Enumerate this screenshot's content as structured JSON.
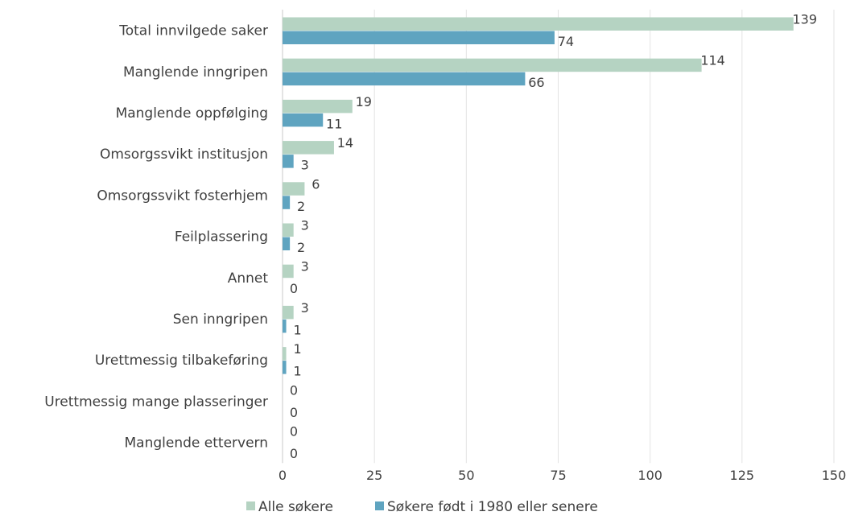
{
  "chart_data": {
    "type": "bar",
    "orientation": "horizontal",
    "categories": [
      "Total innvilgede saker",
      "Manglende inngripen",
      "Manglende oppfølging",
      "Omsorgssvikt institusjon",
      "Omsorgssvikt fosterhjem",
      "Feilplassering",
      "Annet",
      "Sen inngripen",
      "Urettmessig tilbakeføring",
      "Urettmessig mange plasseringer",
      "Manglende ettervern"
    ],
    "series": [
      {
        "name": "Alle søkere",
        "color": "#b5d3c2",
        "values": [
          139,
          114,
          19,
          14,
          6,
          3,
          3,
          3,
          1,
          0,
          0
        ]
      },
      {
        "name": "Søkere født i 1980 eller senere",
        "color": "#5fa4c0",
        "values": [
          74,
          66,
          11,
          3,
          2,
          2,
          0,
          1,
          1,
          0,
          0
        ]
      }
    ],
    "xlim": [
      0,
      150
    ],
    "xticks": [
      0,
      25,
      50,
      75,
      100,
      125,
      150
    ],
    "grid": true,
    "legend": "bottom",
    "data_labels": true
  }
}
